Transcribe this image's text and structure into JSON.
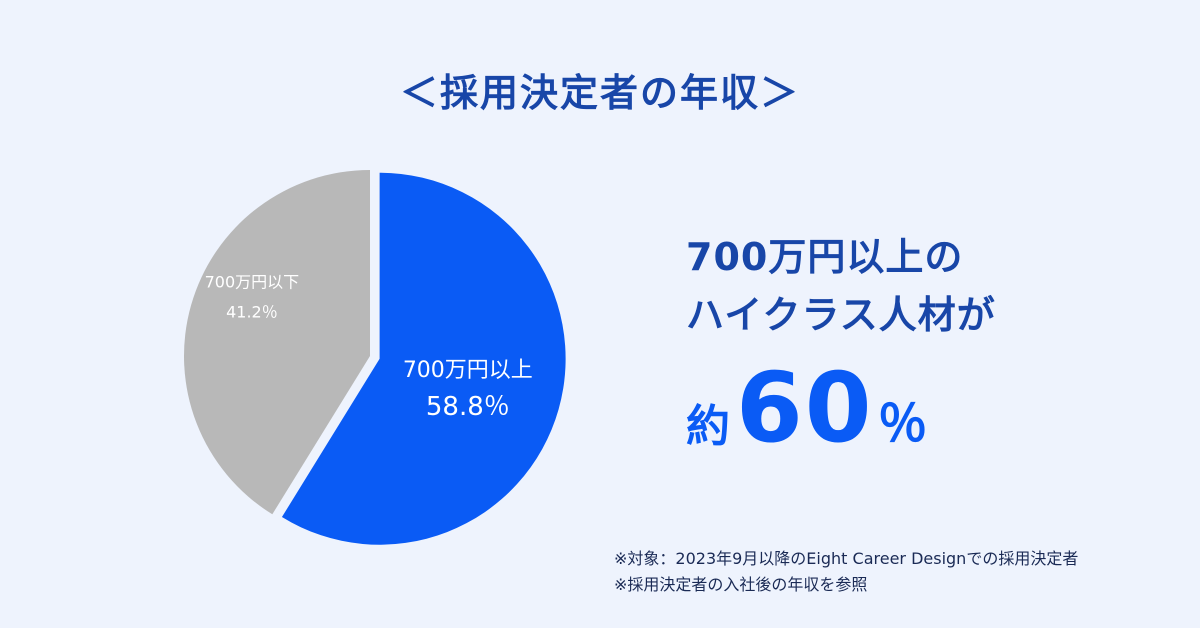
{
  "title": "＜採用決定者の年収＞",
  "chart_data": {
    "type": "pie",
    "slices": [
      {
        "label": "700万円以上",
        "value": 58.8,
        "value_label": "58.8％",
        "color": "#0A5BF5"
      },
      {
        "label": "700万円以下",
        "value": 41.2,
        "value_label": "41.2％",
        "color": "#B8B8B8"
      }
    ],
    "start_angle": "12 o'clock",
    "direction": "clockwise",
    "highlight_offset": "first slice exploded"
  },
  "headline": {
    "line1": "700万円以上の",
    "line2": "ハイクラス人材が"
  },
  "big_stat": {
    "prefix": "約",
    "number": "60",
    "suffix": "％"
  },
  "notes": {
    "line1": "※対象：2023年9月以降のEight Career Designでの採用決定者",
    "line2": "※採用決定者の入社後の年収を参照"
  }
}
